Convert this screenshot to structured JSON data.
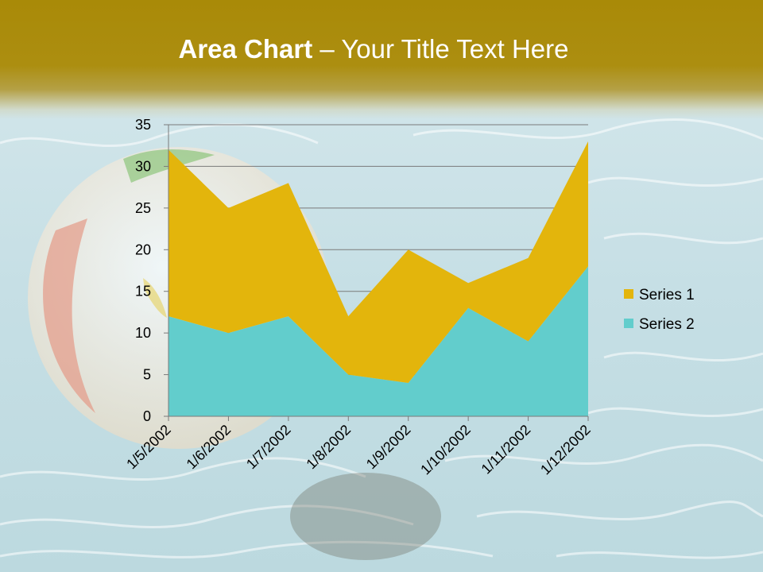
{
  "slide": {
    "title_bold": "Area Chart",
    "title_sep": " – ",
    "title_rest": "Your Title Text Here"
  },
  "colors": {
    "title_bar": "#a98a08",
    "series1": "#e3b50c",
    "series2": "#62cdcc",
    "water": "#cfe3e8"
  },
  "chart_data": {
    "type": "area",
    "stacked": true,
    "categories": [
      "1/5/2002",
      "1/6/2002",
      "1/7/2002",
      "1/8/2002",
      "1/9/2002",
      "1/10/2002",
      "1/11/2002",
      "1/12/2002"
    ],
    "series": [
      {
        "name": "Series 2",
        "values": [
          12,
          10,
          12,
          5,
          4,
          13,
          9,
          18
        ],
        "color": "#62cdcc"
      },
      {
        "name": "Series 1",
        "values": [
          20,
          15,
          16,
          7,
          16,
          3,
          10,
          15
        ],
        "color": "#e3b50c"
      }
    ],
    "legend": [
      "Series 1",
      "Series 2"
    ],
    "legend_position": "right",
    "ylim": [
      0,
      35
    ],
    "yticks": [
      0,
      5,
      10,
      15,
      20,
      25,
      30,
      35
    ],
    "grid": true
  }
}
